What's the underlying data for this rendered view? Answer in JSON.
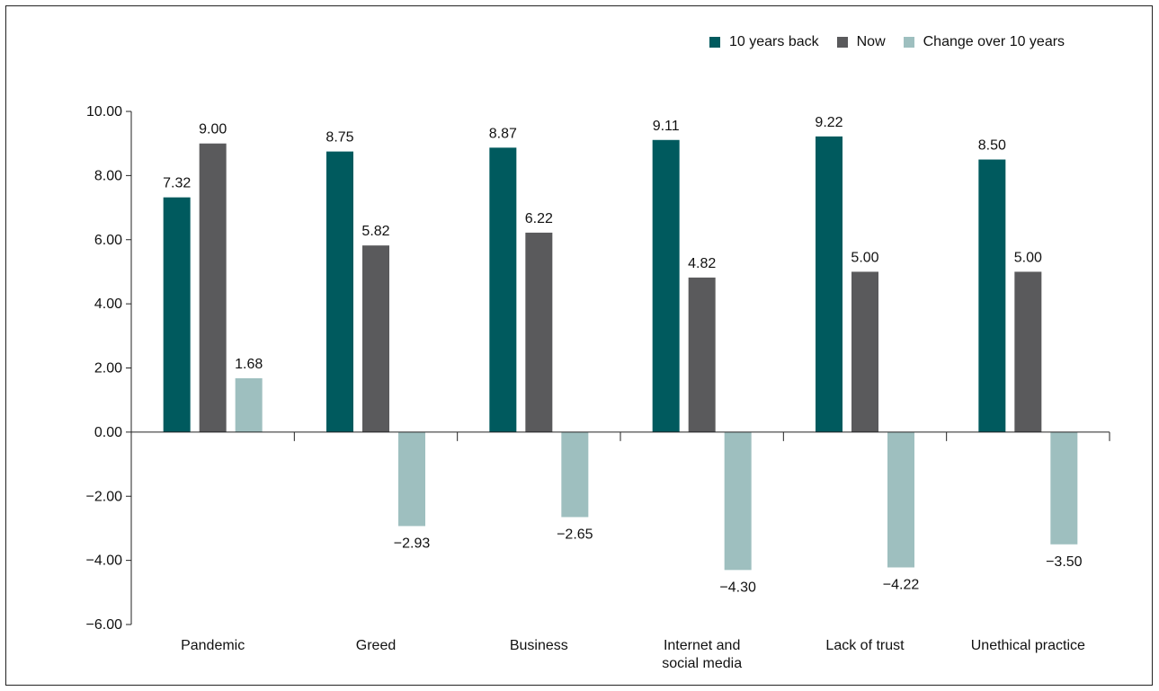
{
  "chart_data": {
    "type": "bar",
    "categories": [
      "Pandemic",
      "Greed",
      "Business",
      "Internet and social media",
      "Lack of trust",
      "Unethical practice"
    ],
    "category_lines": [
      [
        "Pandemic"
      ],
      [
        "Greed"
      ],
      [
        "Business"
      ],
      [
        "Internet and",
        "social media"
      ],
      [
        "Lack of trust"
      ],
      [
        "Unethical practice"
      ]
    ],
    "series": [
      {
        "name": "10 years back",
        "color": "#005a5e",
        "values": [
          7.32,
          8.75,
          8.87,
          9.11,
          9.22,
          8.5
        ]
      },
      {
        "name": "Now",
        "color": "#5a5a5c",
        "values": [
          9.0,
          5.82,
          6.22,
          4.82,
          5.0,
          5.0
        ]
      },
      {
        "name": "Change over 10 years",
        "color": "#9ebfbf",
        "values": [
          1.68,
          -2.93,
          -2.65,
          -4.3,
          -4.22,
          -3.5
        ]
      }
    ],
    "data_labels": [
      [
        "7.32",
        "9.00",
        "1.68"
      ],
      [
        "8.75",
        "5.82",
        "−2.93"
      ],
      [
        "8.87",
        "6.22",
        "−2.65"
      ],
      [
        "9.11",
        "4.82",
        "−4.30"
      ],
      [
        "9.22",
        "5.00",
        "−4.22"
      ],
      [
        "8.50",
        "5.00",
        "−3.50"
      ]
    ],
    "y_ticks": [
      "10.00",
      "8.00",
      "6.00",
      "4.00",
      "2.00",
      "0.00",
      "−2.00",
      "−4.00",
      "−6.00"
    ],
    "ylim": [
      -6,
      10
    ],
    "title": "",
    "xlabel": "",
    "ylabel": "",
    "legend_position": "top-right",
    "grid": false
  }
}
